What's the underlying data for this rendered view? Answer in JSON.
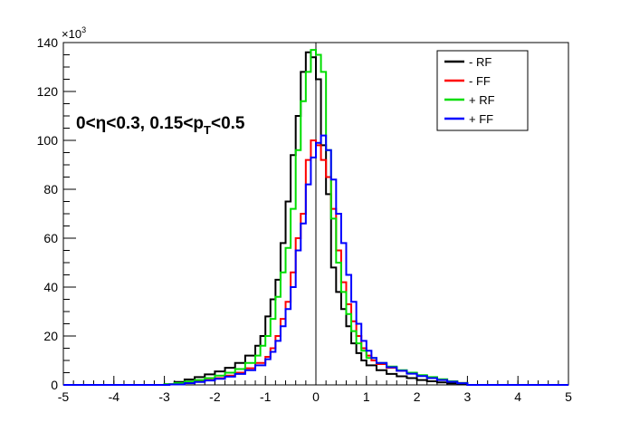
{
  "chart_data": {
    "type": "line",
    "style": "step-histogram",
    "xlim": [
      -5,
      5
    ],
    "ylim": [
      0,
      140000
    ],
    "y_multiplier_label": "×10",
    "y_multiplier_exponent": "3",
    "x_ticks": [
      -5,
      -4,
      -3,
      -2,
      -1,
      0,
      1,
      2,
      3,
      4,
      5
    ],
    "y_ticks": [
      0,
      20,
      40,
      60,
      80,
      100,
      120,
      140
    ],
    "grid": false,
    "legend_position": "top-right",
    "annotation": {
      "main": "0<η<0.3, 0.15<p",
      "subscript": "T",
      "tail": "<0.5"
    },
    "series": [
      {
        "name": "- RF",
        "color": "#000000",
        "points": [
          [
            -3.1,
            0
          ],
          [
            -3.0,
            300
          ],
          [
            -2.8,
            1200
          ],
          [
            -2.6,
            2200
          ],
          [
            -2.4,
            3200
          ],
          [
            -2.2,
            4300
          ],
          [
            -2.0,
            5500
          ],
          [
            -1.8,
            7000
          ],
          [
            -1.6,
            9000
          ],
          [
            -1.4,
            12000
          ],
          [
            -1.2,
            16000
          ],
          [
            -1.1,
            20000
          ],
          [
            -1.0,
            28000
          ],
          [
            -0.9,
            35000
          ],
          [
            -0.8,
            43000
          ],
          [
            -0.7,
            58000
          ],
          [
            -0.6,
            75000
          ],
          [
            -0.5,
            94000
          ],
          [
            -0.4,
            110000
          ],
          [
            -0.3,
            128000
          ],
          [
            -0.2,
            136000
          ],
          [
            -0.1,
            134000
          ],
          [
            0.0,
            125000
          ],
          [
            0.1,
            98000
          ],
          [
            0.2,
            78000
          ],
          [
            0.3,
            48000
          ],
          [
            0.4,
            38000
          ],
          [
            0.5,
            31000
          ],
          [
            0.6,
            24000
          ],
          [
            0.7,
            17000
          ],
          [
            0.8,
            13000
          ],
          [
            0.9,
            10000
          ],
          [
            1.0,
            8000
          ],
          [
            1.2,
            6000
          ],
          [
            1.4,
            4500
          ],
          [
            1.6,
            3500
          ],
          [
            1.8,
            2800
          ],
          [
            2.0,
            2000
          ],
          [
            2.2,
            1500
          ],
          [
            2.4,
            1000
          ],
          [
            2.6,
            600
          ],
          [
            2.8,
            300
          ],
          [
            3.0,
            0
          ]
        ]
      },
      {
        "name": "- FF",
        "color": "#ff0000",
        "points": [
          [
            -3.0,
            0
          ],
          [
            -2.9,
            200
          ],
          [
            -2.6,
            800
          ],
          [
            -2.4,
            1400
          ],
          [
            -2.2,
            2000
          ],
          [
            -2.0,
            2800
          ],
          [
            -1.8,
            3800
          ],
          [
            -1.6,
            5000
          ],
          [
            -1.4,
            6800
          ],
          [
            -1.2,
            9000
          ],
          [
            -1.0,
            11500
          ],
          [
            -0.9,
            15000
          ],
          [
            -0.8,
            20000
          ],
          [
            -0.7,
            27000
          ],
          [
            -0.6,
            34000
          ],
          [
            -0.5,
            46000
          ],
          [
            -0.4,
            60000
          ],
          [
            -0.3,
            70000
          ],
          [
            -0.2,
            92000
          ],
          [
            -0.1,
            100000
          ],
          [
            0.0,
            98000
          ],
          [
            0.1,
            92000
          ],
          [
            0.2,
            85000
          ],
          [
            0.3,
            72000
          ],
          [
            0.4,
            55000
          ],
          [
            0.5,
            42000
          ],
          [
            0.6,
            33000
          ],
          [
            0.7,
            26000
          ],
          [
            0.8,
            20000
          ],
          [
            0.9,
            15000
          ],
          [
            1.0,
            12000
          ],
          [
            1.1,
            10000
          ],
          [
            1.2,
            8500
          ],
          [
            1.4,
            7000
          ],
          [
            1.6,
            5800
          ],
          [
            1.8,
            4800
          ],
          [
            2.0,
            3800
          ],
          [
            2.2,
            3000
          ],
          [
            2.4,
            2200
          ],
          [
            2.6,
            1500
          ],
          [
            2.8,
            800
          ],
          [
            3.0,
            0
          ]
        ]
      },
      {
        "name": "+ RF",
        "color": "#00dd00",
        "points": [
          [
            -3.1,
            0
          ],
          [
            -3.0,
            300
          ],
          [
            -2.8,
            800
          ],
          [
            -2.6,
            1400
          ],
          [
            -2.4,
            2000
          ],
          [
            -2.2,
            2800
          ],
          [
            -2.0,
            3800
          ],
          [
            -1.8,
            5000
          ],
          [
            -1.6,
            6500
          ],
          [
            -1.4,
            9000
          ],
          [
            -1.2,
            12000
          ],
          [
            -1.1,
            16000
          ],
          [
            -1.0,
            20000
          ],
          [
            -0.9,
            27000
          ],
          [
            -0.8,
            36000
          ],
          [
            -0.7,
            46000
          ],
          [
            -0.6,
            56000
          ],
          [
            -0.5,
            72000
          ],
          [
            -0.4,
            96000
          ],
          [
            -0.3,
            116000
          ],
          [
            -0.2,
            128000
          ],
          [
            -0.1,
            137000
          ],
          [
            0.0,
            135000
          ],
          [
            0.1,
            128000
          ],
          [
            0.2,
            96000
          ],
          [
            0.3,
            68000
          ],
          [
            0.4,
            50000
          ],
          [
            0.5,
            38000
          ],
          [
            0.6,
            29000
          ],
          [
            0.7,
            22000
          ],
          [
            0.8,
            17000
          ],
          [
            0.9,
            14000
          ],
          [
            1.0,
            11000
          ],
          [
            1.2,
            9000
          ],
          [
            1.4,
            7500
          ],
          [
            1.6,
            6000
          ],
          [
            1.8,
            5000
          ],
          [
            2.0,
            4000
          ],
          [
            2.2,
            3200
          ],
          [
            2.4,
            2300
          ],
          [
            2.6,
            1500
          ],
          [
            2.8,
            800
          ],
          [
            3.0,
            0
          ]
        ]
      },
      {
        "name": "+ FF",
        "color": "#0000ff",
        "points": [
          [
            -3.0,
            0
          ],
          [
            -2.9,
            200
          ],
          [
            -2.6,
            700
          ],
          [
            -2.4,
            1200
          ],
          [
            -2.2,
            1800
          ],
          [
            -2.0,
            2500
          ],
          [
            -1.8,
            3400
          ],
          [
            -1.6,
            4500
          ],
          [
            -1.4,
            6000
          ],
          [
            -1.2,
            8000
          ],
          [
            -1.0,
            10500
          ],
          [
            -0.9,
            13500
          ],
          [
            -0.8,
            18000
          ],
          [
            -0.7,
            24000
          ],
          [
            -0.6,
            31000
          ],
          [
            -0.5,
            40000
          ],
          [
            -0.4,
            55000
          ],
          [
            -0.3,
            66000
          ],
          [
            -0.2,
            82000
          ],
          [
            -0.1,
            93000
          ],
          [
            0.0,
            99000
          ],
          [
            0.1,
            102000
          ],
          [
            0.2,
            96000
          ],
          [
            0.3,
            84000
          ],
          [
            0.4,
            70000
          ],
          [
            0.5,
            58000
          ],
          [
            0.6,
            45000
          ],
          [
            0.7,
            34000
          ],
          [
            0.8,
            25000
          ],
          [
            0.9,
            18000
          ],
          [
            1.0,
            14000
          ],
          [
            1.1,
            11000
          ],
          [
            1.2,
            9000
          ],
          [
            1.4,
            7200
          ],
          [
            1.6,
            5800
          ],
          [
            1.8,
            4600
          ],
          [
            2.0,
            3600
          ],
          [
            2.2,
            2800
          ],
          [
            2.4,
            2000
          ],
          [
            2.6,
            1300
          ],
          [
            2.8,
            700
          ],
          [
            3.0,
            0
          ]
        ]
      }
    ]
  }
}
